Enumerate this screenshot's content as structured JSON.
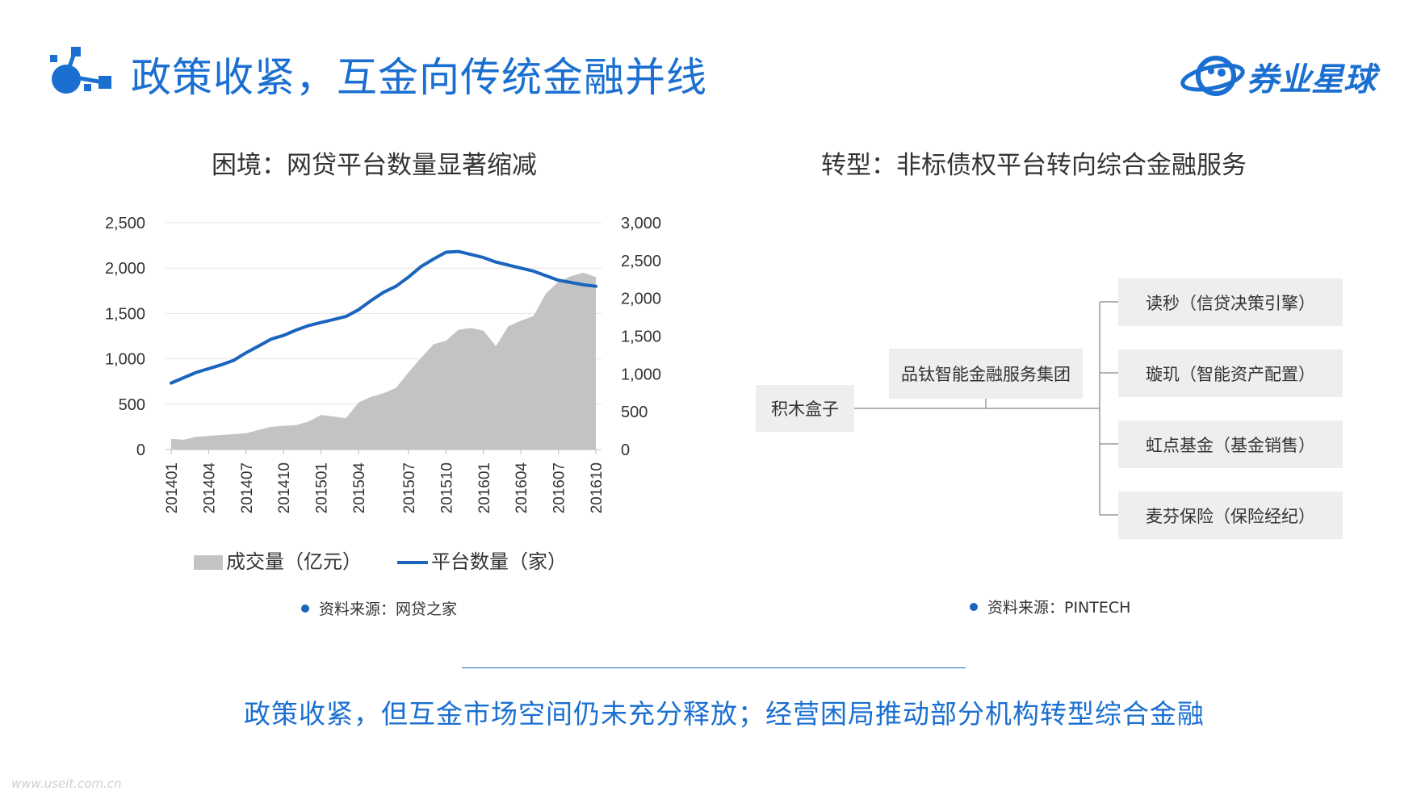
{
  "header": {
    "title": "政策收紧，互金向传统金融并线",
    "brand": "券业星球",
    "accent": "#1a6fd0"
  },
  "left": {
    "subtitle": "困境：网贷平台数量显著缩减",
    "source": "资料来源：网贷之家"
  },
  "right": {
    "subtitle": "转型：非标债权平台转向综合金融服务",
    "source": "资料来源：PINTECH",
    "root": "积木盒子",
    "group": "品钛智能金融服务集团",
    "children": [
      "读秒（信贷决策引擎）",
      "璇玑（智能资产配置）",
      "虹点基金（基金销售）",
      "麦芬保险（保险经纪）"
    ]
  },
  "conclusion": "政策收紧，但互金市场空间仍未充分释放；经营困局推动部分机构转型综合金融",
  "watermark": "www.useit.com.cn",
  "chart_data": {
    "type": "area",
    "x_tick_labels": [
      "201401",
      "201404",
      "201407",
      "201410",
      "201501",
      "201504",
      "201507",
      "201510",
      "201601",
      "201604",
      "201607",
      "201610"
    ],
    "ylim_left": [
      0,
      2500
    ],
    "yticks_left": [
      "0",
      "500",
      "1,000",
      "1,500",
      "2,000",
      "2,500"
    ],
    "ylim_right": [
      0,
      3000
    ],
    "yticks_right": [
      "0",
      "500",
      "1,000",
      "1,500",
      "2,000",
      "2,500",
      "3,000"
    ],
    "legend_placement": "bottom",
    "grid": true,
    "series": [
      {
        "name": "成交量（亿元）",
        "axis": "left",
        "type": "area",
        "color": "#c3c3c3",
        "values": [
          118,
          108,
          140,
          150,
          160,
          170,
          180,
          215,
          250,
          262,
          270,
          310,
          380,
          365,
          345,
          520,
          580,
          620,
          680,
          850,
          1010,
          1160,
          1200,
          1320,
          1340,
          1310,
          1140,
          1360,
          1420,
          1470,
          1720,
          1850,
          1910,
          1950,
          1900
        ]
      },
      {
        "name": "平台数量（家）",
        "axis": "right",
        "type": "line",
        "color": "#1a64be",
        "values": [
          880,
          950,
          1020,
          1070,
          1120,
          1180,
          1280,
          1370,
          1460,
          1510,
          1580,
          1640,
          1680,
          1720,
          1760,
          1850,
          1970,
          2080,
          2160,
          2280,
          2420,
          2520,
          2610,
          2620,
          2580,
          2540,
          2480,
          2440,
          2400,
          2360,
          2300,
          2240,
          2210,
          2180,
          2160
        ]
      }
    ]
  }
}
